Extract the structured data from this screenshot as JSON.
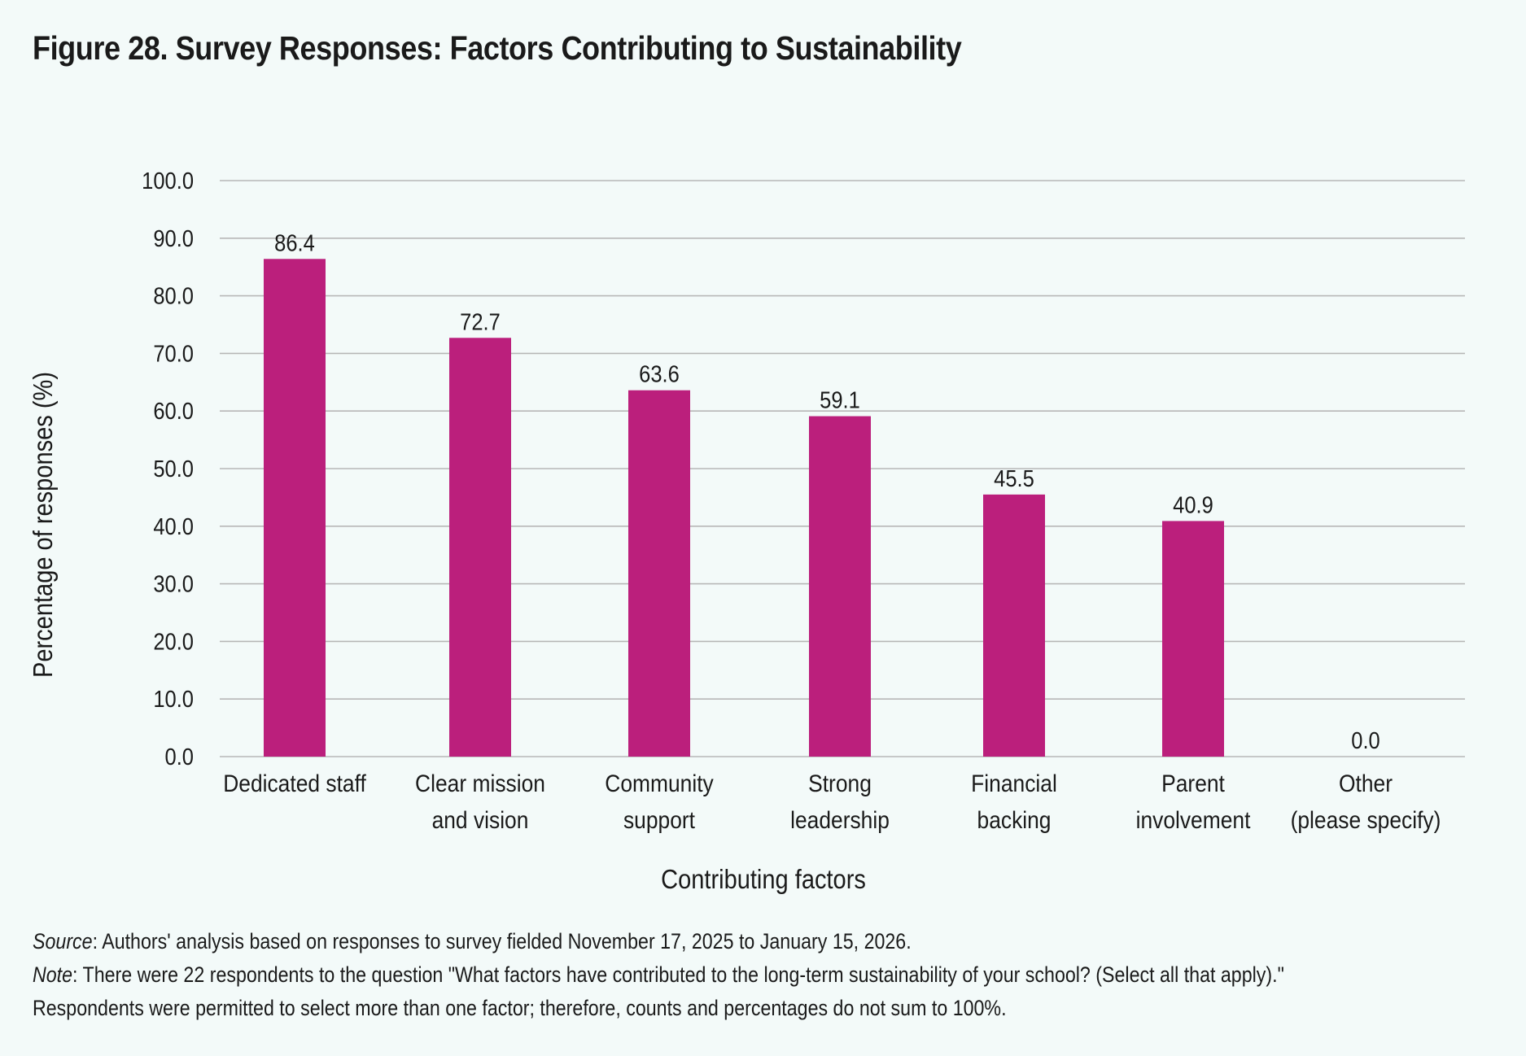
{
  "figure_title": "Figure 28. Survey Responses: Factors Contributing to Sustainability",
  "chart_data": {
    "type": "bar",
    "categories": [
      [
        "Dedicated staff"
      ],
      [
        "Clear mission",
        "and vision"
      ],
      [
        "Community",
        "support"
      ],
      [
        "Strong",
        "leadership"
      ],
      [
        "Financial",
        "backing"
      ],
      [
        "Parent",
        "involvement"
      ],
      [
        "Other",
        "(please specify)"
      ]
    ],
    "values": [
      86.4,
      72.7,
      63.6,
      59.1,
      45.5,
      40.9,
      0.0
    ],
    "value_labels": [
      "86.4",
      "72.7",
      "63.6",
      "59.1",
      "45.5",
      "40.9",
      "0.0"
    ],
    "xlabel": "Contributing factors",
    "ylabel": "Percentage of responses (%)",
    "ylim": [
      0,
      100
    ],
    "yticks": [
      "0.0",
      "10.0",
      "20.0",
      "30.0",
      "40.0",
      "50.0",
      "60.0",
      "70.0",
      "80.0",
      "90.0",
      "100.0"
    ],
    "grid": true,
    "bar_color": "#bb1f7c"
  },
  "source": {
    "label": "Source",
    "text": ": Authors' analysis based on responses to survey fielded November 17, 2025 to January 15, 2026."
  },
  "note": {
    "label": "Note",
    "text": ": There were 22 respondents to the question \"What factors have contributed to the long-term sustainability of your school? (Select all that apply).\"",
    "text2": "Respondents were permitted to select more than one factor; therefore, counts and percentages do not sum to 100%."
  }
}
